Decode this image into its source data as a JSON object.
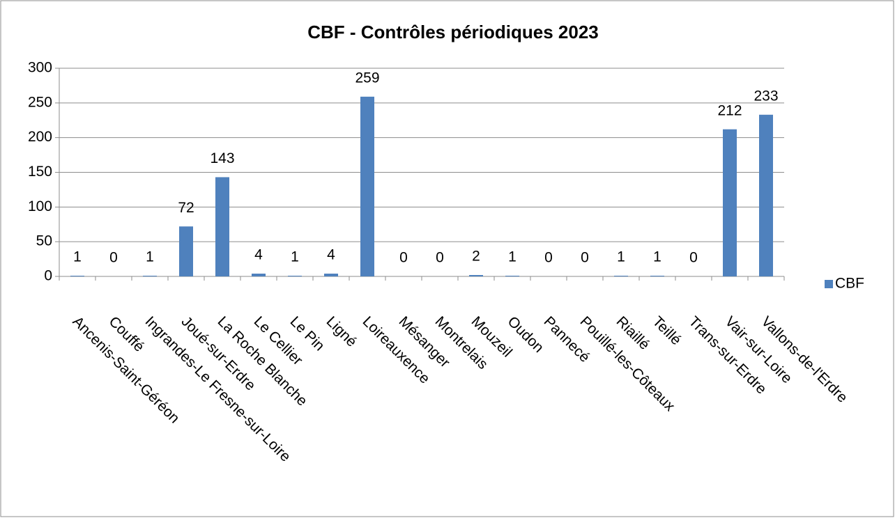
{
  "chart_data": {
    "type": "bar",
    "title": "CBF - Contrôles périodiques 2023",
    "categories": [
      "Ancenis-Saint-Géréon",
      "Couffé",
      "Ingrandes-Le Fresne-sur-Loire",
      "Joué-sur-Erdre",
      "La Roche Blanche",
      "Le Cellier",
      "Le Pin",
      "Ligné",
      "Loireauxence",
      "Mésanger",
      "Montrelais",
      "Mouzeil",
      "Oudon",
      "Pannecé",
      "Pouillé-les-Côteaux",
      "Riaillé",
      "Teillé",
      "Trans-sur-Erdre",
      "Vair-sur-Loire",
      "Vallons-de-l'Erdre"
    ],
    "series": [
      {
        "name": "CBF",
        "color": "#4f81bd",
        "values": [
          1,
          0,
          1,
          72,
          143,
          4,
          1,
          4,
          259,
          0,
          0,
          2,
          1,
          0,
          0,
          1,
          1,
          0,
          212,
          233
        ]
      }
    ],
    "ylim": [
      0,
      300
    ],
    "yticks": [
      0,
      50,
      100,
      150,
      200,
      250,
      300
    ],
    "grid": true,
    "legend": "right"
  }
}
